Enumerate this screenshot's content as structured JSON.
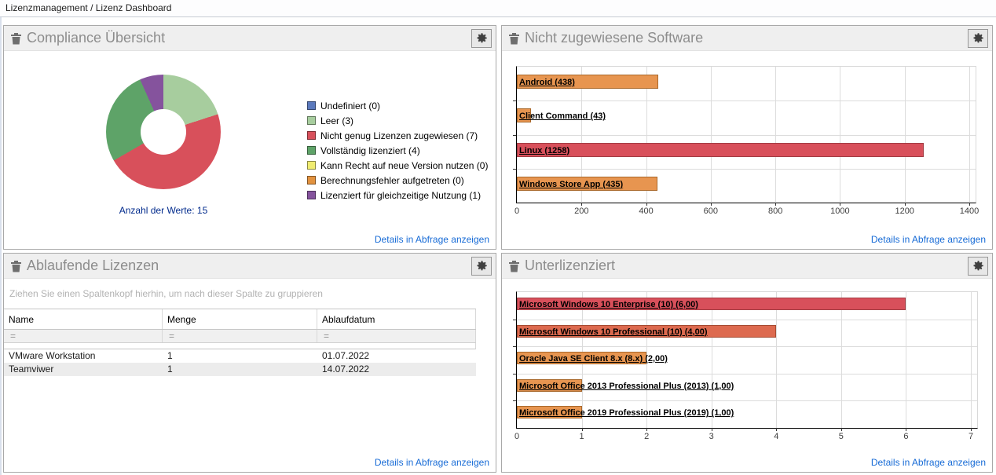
{
  "breadcrumb": {
    "text": "Lizenzmanagement / Lizenz Dashboard"
  },
  "common": {
    "details_link": "Details in Abfrage anzeigen",
    "gear_icon": "gear",
    "trash_icon": "trash"
  },
  "colors": {
    "link": "#176bd6",
    "panel_header_bg": "#efefef",
    "panel_border": "#a9a9a9",
    "red": "#d8505b",
    "orange": "#e79550",
    "orange_red": "#dd6a4f",
    "note_text": "#002a8c",
    "alt_row": "#ececec"
  },
  "panels": {
    "compliance": {
      "title": "Compliance Übersicht",
      "note": "Anzahl der Werte: 15"
    },
    "unassigned": {
      "title": "Nicht zugewiesene Software"
    },
    "expiring": {
      "title": "Ablaufende Lizenzen",
      "group_hint": "Ziehen Sie einen Spaltenkopf hierhin, um nach dieser Spalte zu gruppieren",
      "columns": [
        "Name",
        "Menge",
        "Ablaufdatum"
      ],
      "filter_symbol": "=",
      "rows": [
        [
          "VMware Workstation",
          "1",
          "01.07.2022"
        ],
        [
          "Teamviwer",
          "1",
          "14.07.2022"
        ]
      ]
    },
    "underlicensed": {
      "title": "Unterlizenziert"
    }
  },
  "chart_data": [
    {
      "id": "compliance-donut",
      "type": "pie",
      "title": "Compliance Übersicht",
      "hole": 0.4,
      "labels": [
        "Undefiniert",
        "Leer",
        "Nicht genug Lizenzen zugewiesen",
        "Vollständig lizenziert",
        "Kann Recht auf neue Version nutzen",
        "Berechnungsfehler aufgetreten",
        "Lizenziert für gleichzeitige Nutzung"
      ],
      "values": [
        0,
        3,
        7,
        4,
        0,
        0,
        1
      ],
      "colors": [
        "#5b79bd",
        "#a7cd9e",
        "#d8505b",
        "#5ea368",
        "#f0ec70",
        "#e2923f",
        "#85539d"
      ],
      "legend": [
        "Undefiniert (0)",
        "Leer (3)",
        "Nicht genug Lizenzen zugewiesen (7)",
        "Vollständig lizenziert (4)",
        "Kann Recht auf neue Version nutzen (0)",
        "Berechnungsfehler aufgetreten (0)",
        "Lizenziert für gleichzeitige Nutzung (1)"
      ],
      "legend_position": "right",
      "annotation": "Anzahl der Werte: 15",
      "total": 15
    },
    {
      "id": "unassigned-bars",
      "type": "bar",
      "orientation": "horizontal",
      "title": "Nicht zugewiesene Software",
      "categories": [
        "Android",
        "Client Command",
        "Linux",
        "Windows Store App"
      ],
      "values": [
        438,
        43,
        1258,
        435
      ],
      "bar_labels": [
        "Android (438)",
        "Client Command (43)",
        "Linux (1258)",
        "Windows Store App (435)"
      ],
      "colors": [
        "#e79550",
        "#e79550",
        "#d8505b",
        "#e79550"
      ],
      "border_colors": [
        "#a9682a",
        "#a9682a",
        "#a23c43",
        "#a9682a"
      ],
      "xlim": [
        0,
        1400
      ],
      "xticks": [
        0,
        200,
        400,
        600,
        800,
        1000,
        1200,
        1400
      ],
      "grid": true
    },
    {
      "id": "underlicensed-bars",
      "type": "bar",
      "orientation": "horizontal",
      "title": "Unterlizenziert",
      "categories": [
        "Microsoft Windows 10 Enterprise (10)",
        "Microsoft Windows 10 Professional (10)",
        "Oracle Java SE Client 8.x (8.x)",
        "Microsoft Office 2013 Professional Plus (2013)",
        "Microsoft Office 2019 Professional Plus (2019)"
      ],
      "values": [
        6.0,
        4.0,
        2.0,
        1.0,
        1.0
      ],
      "bar_labels": [
        "Microsoft Windows 10 Enterprise (10) (6,00)",
        "Microsoft Windows 10 Professional (10) (4,00)",
        "Oracle Java SE Client 8.x (8.x) (2,00)",
        "Microsoft Office 2013 Professional Plus (2013) (1,00)",
        "Microsoft Office 2019 Professional Plus (2019) (1,00)"
      ],
      "colors": [
        "#d8505b",
        "#dd6a4f",
        "#e79550",
        "#e79550",
        "#e79550"
      ],
      "border_colors": [
        "#a23c43",
        "#a54b32",
        "#a9682a",
        "#a9682a",
        "#a9682a"
      ],
      "xlim": [
        0,
        7
      ],
      "xticks": [
        0,
        1,
        2,
        3,
        4,
        5,
        6,
        7
      ],
      "grid": true
    }
  ]
}
